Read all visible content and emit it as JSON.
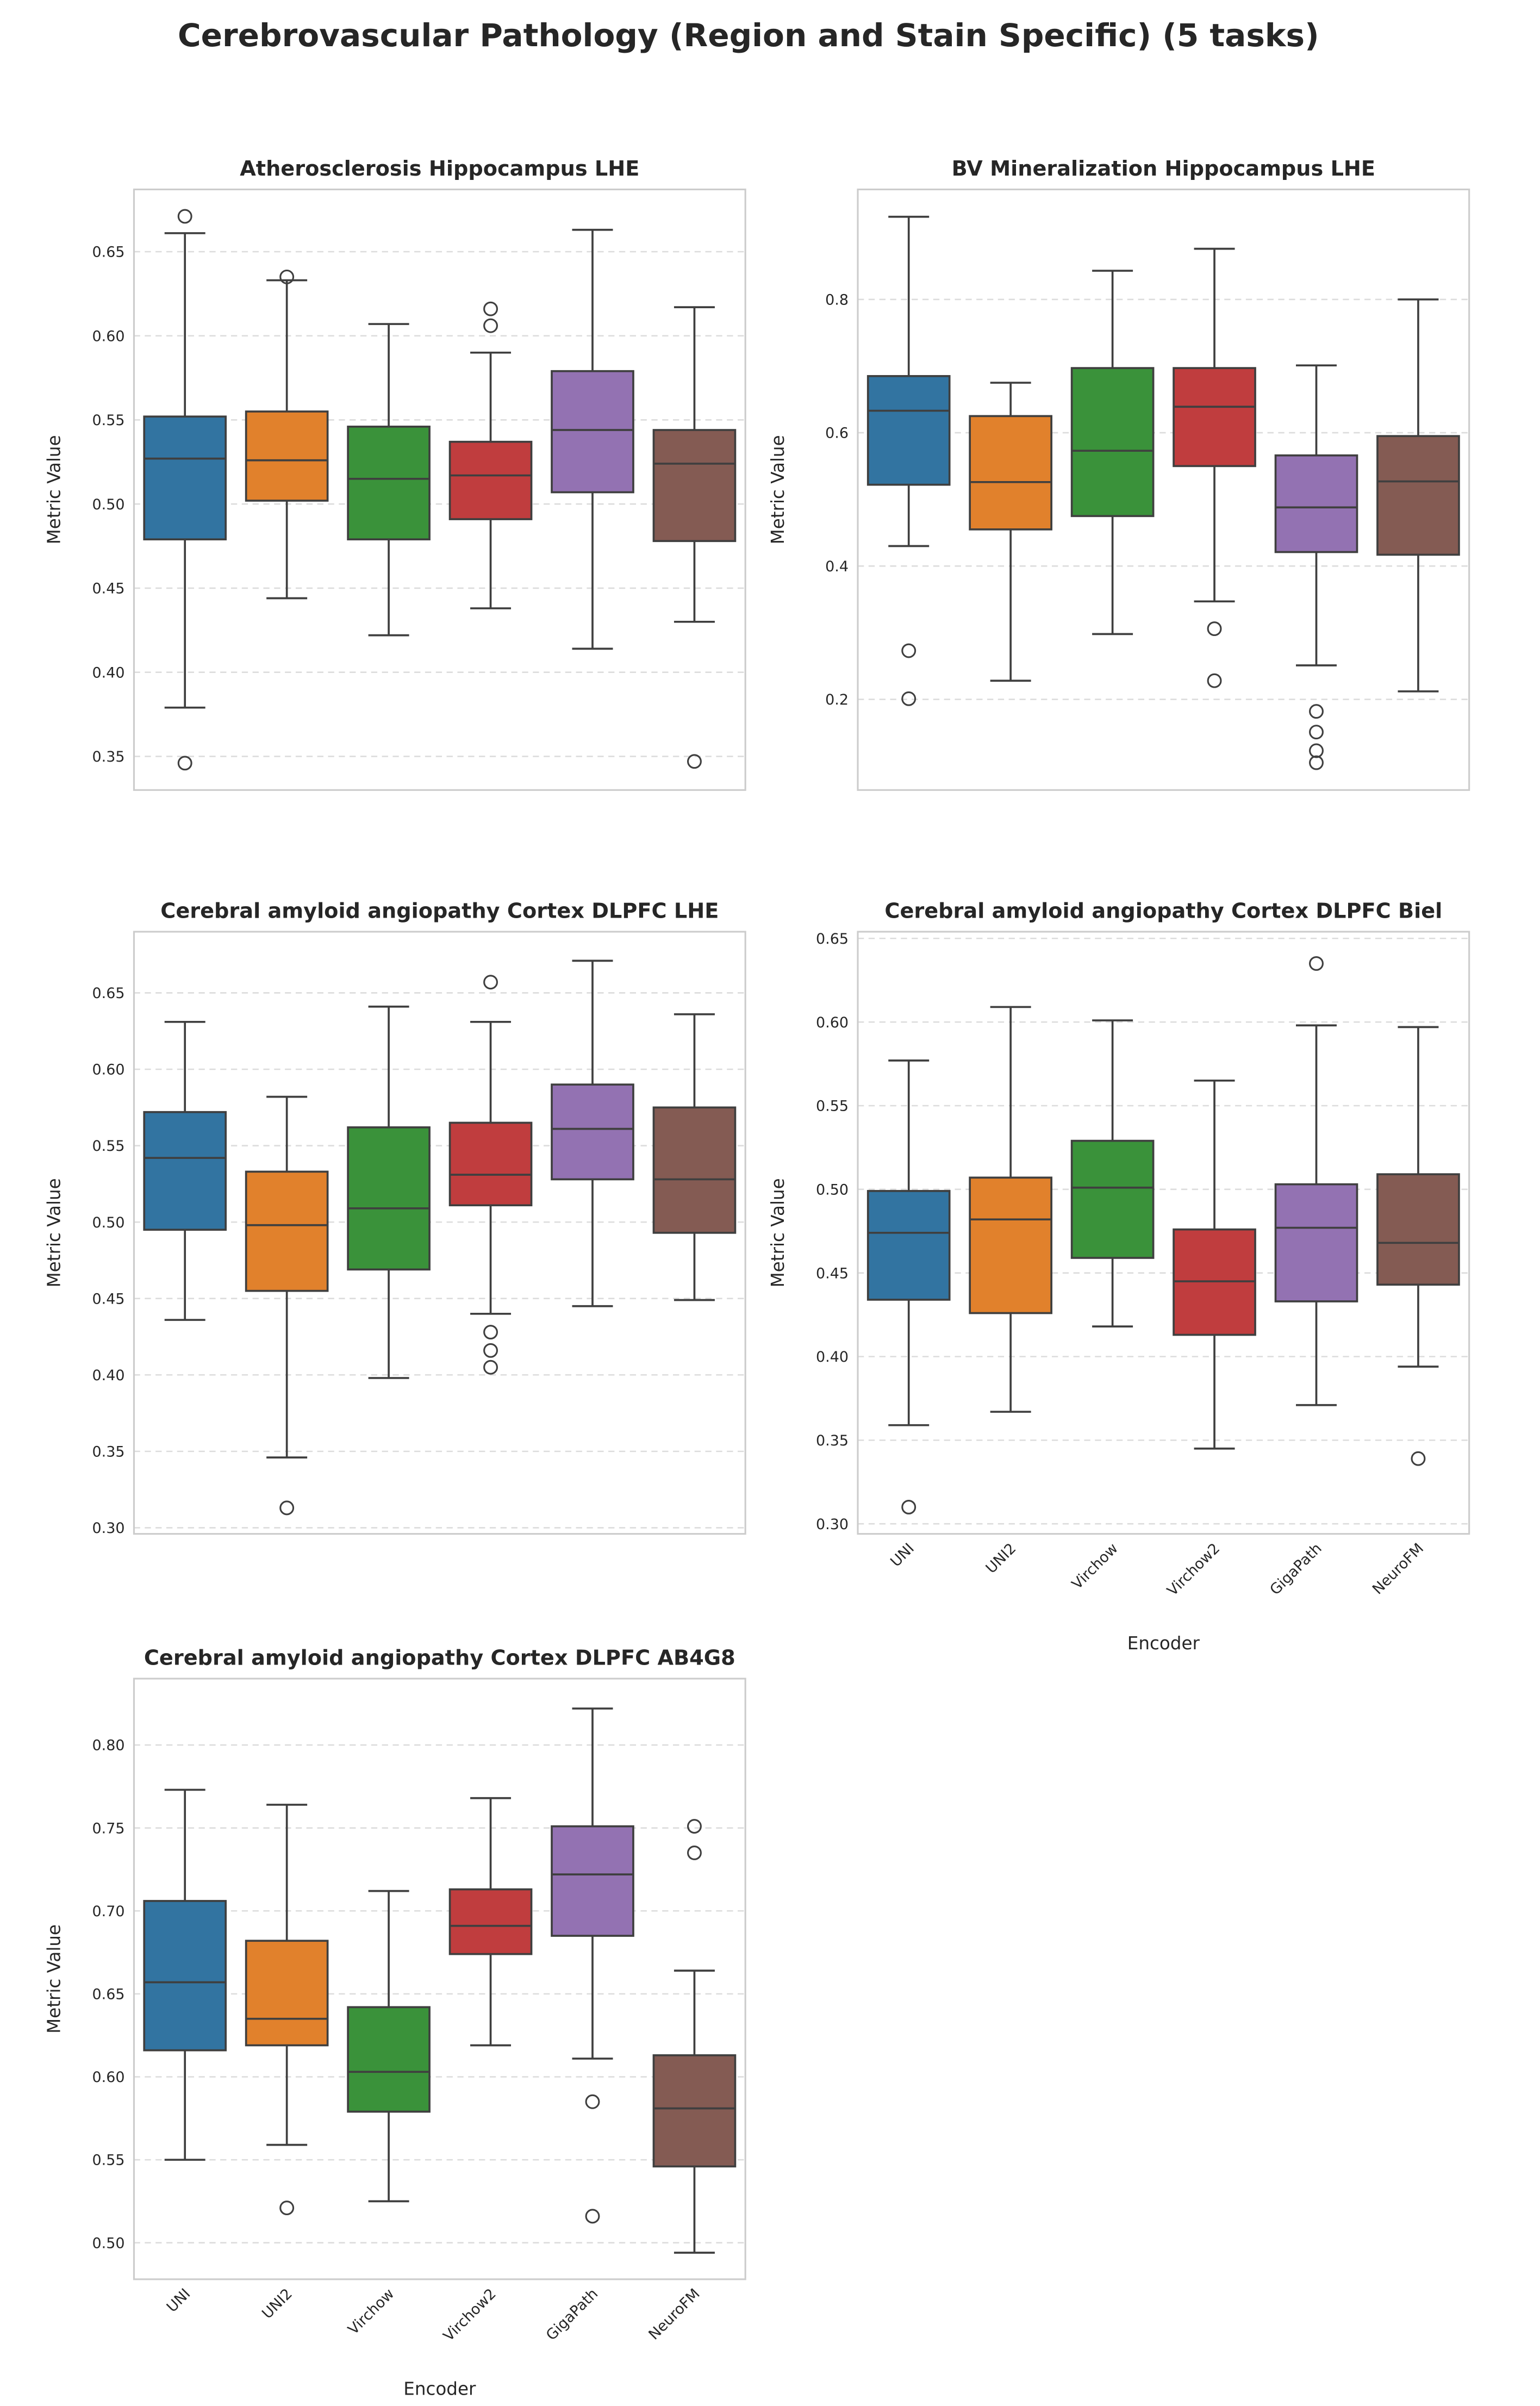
{
  "figure_title": "Cerebrovascular Pathology (Region and Stain Specific) (5 tasks)",
  "palette": {
    "UNI": "#3274a1",
    "UNI2": "#e1812c",
    "Virchow": "#3a923a",
    "Virchow2": "#c03d3e",
    "GigaPath": "#9372b2",
    "NeuroFM": "#845b53"
  },
  "chart_data": [
    {
      "type": "box",
      "title": "Atherosclerosis Hippocampus LHE",
      "xlabel": "",
      "ylabel": "Metric Value",
      "ylim": [
        0.33,
        0.687
      ],
      "yticks": [
        "0.35",
        "0.40",
        "0.45",
        "0.50",
        "0.55",
        "0.60",
        "0.65"
      ],
      "show_xticklabels": false,
      "grid": "y dashed",
      "categories": [
        "UNI",
        "UNI2",
        "Virchow",
        "Virchow2",
        "GigaPath",
        "NeuroFM"
      ],
      "boxes": [
        {
          "whisker_low": 0.379,
          "q1": 0.479,
          "median": 0.527,
          "q3": 0.552,
          "whisker_high": 0.661,
          "outliers": [
            0.671,
            0.346
          ]
        },
        {
          "whisker_low": 0.444,
          "q1": 0.502,
          "median": 0.526,
          "q3": 0.555,
          "whisker_high": 0.633,
          "outliers": [
            0.635
          ]
        },
        {
          "whisker_low": 0.422,
          "q1": 0.479,
          "median": 0.515,
          "q3": 0.546,
          "whisker_high": 0.607,
          "outliers": []
        },
        {
          "whisker_low": 0.438,
          "q1": 0.491,
          "median": 0.517,
          "q3": 0.537,
          "whisker_high": 0.59,
          "outliers": [
            0.616,
            0.606
          ]
        },
        {
          "whisker_low": 0.414,
          "q1": 0.507,
          "median": 0.544,
          "q3": 0.579,
          "whisker_high": 0.663,
          "outliers": []
        },
        {
          "whisker_low": 0.43,
          "q1": 0.478,
          "median": 0.524,
          "q3": 0.544,
          "whisker_high": 0.617,
          "outliers": [
            0.347
          ]
        }
      ]
    },
    {
      "type": "box",
      "title": "BV Mineralization Hippocampus LHE",
      "xlabel": "",
      "ylabel": "Metric Value",
      "ylim": [
        0.064,
        0.965
      ],
      "yticks": [
        "0.2",
        "0.4",
        "0.6",
        "0.8"
      ],
      "show_xticklabels": false,
      "grid": "y dashed",
      "categories": [
        "UNI",
        "UNI2",
        "Virchow",
        "Virchow2",
        "GigaPath",
        "NeuroFM"
      ],
      "boxes": [
        {
          "whisker_low": 0.43,
          "q1": 0.522,
          "median": 0.633,
          "q3": 0.685,
          "whisker_high": 0.924,
          "outliers": [
            0.273,
            0.201
          ]
        },
        {
          "whisker_low": 0.228,
          "q1": 0.455,
          "median": 0.526,
          "q3": 0.625,
          "whisker_high": 0.675,
          "outliers": []
        },
        {
          "whisker_low": 0.298,
          "q1": 0.475,
          "median": 0.573,
          "q3": 0.697,
          "whisker_high": 0.843,
          "outliers": []
        },
        {
          "whisker_low": 0.347,
          "q1": 0.55,
          "median": 0.639,
          "q3": 0.697,
          "whisker_high": 0.876,
          "outliers": [
            0.306,
            0.228
          ]
        },
        {
          "whisker_low": 0.251,
          "q1": 0.421,
          "median": 0.488,
          "q3": 0.566,
          "whisker_high": 0.701,
          "outliers": [
            0.182,
            0.151,
            0.123,
            0.105
          ]
        },
        {
          "whisker_low": 0.212,
          "q1": 0.417,
          "median": 0.527,
          "q3": 0.595,
          "whisker_high": 0.8,
          "outliers": []
        }
      ]
    },
    {
      "type": "box",
      "title": "Cerebral amyloid angiopathy Cortex DLPFC LHE",
      "xlabel": "",
      "ylabel": "Metric Value",
      "ylim": [
        0.296,
        0.69
      ],
      "yticks": [
        "0.30",
        "0.35",
        "0.40",
        "0.45",
        "0.50",
        "0.55",
        "0.60",
        "0.65"
      ],
      "show_xticklabels": false,
      "grid": "y dashed",
      "categories": [
        "UNI",
        "UNI2",
        "Virchow",
        "Virchow2",
        "GigaPath",
        "NeuroFM"
      ],
      "boxes": [
        {
          "whisker_low": 0.436,
          "q1": 0.495,
          "median": 0.542,
          "q3": 0.572,
          "whisker_high": 0.631,
          "outliers": []
        },
        {
          "whisker_low": 0.346,
          "q1": 0.455,
          "median": 0.498,
          "q3": 0.533,
          "whisker_high": 0.582,
          "outliers": [
            0.313
          ]
        },
        {
          "whisker_low": 0.398,
          "q1": 0.469,
          "median": 0.509,
          "q3": 0.562,
          "whisker_high": 0.641,
          "outliers": []
        },
        {
          "whisker_low": 0.44,
          "q1": 0.511,
          "median": 0.531,
          "q3": 0.565,
          "whisker_high": 0.631,
          "outliers": [
            0.657,
            0.428,
            0.416,
            0.405
          ]
        },
        {
          "whisker_low": 0.445,
          "q1": 0.528,
          "median": 0.561,
          "q3": 0.59,
          "whisker_high": 0.671,
          "outliers": []
        },
        {
          "whisker_low": 0.449,
          "q1": 0.493,
          "median": 0.528,
          "q3": 0.575,
          "whisker_high": 0.636,
          "outliers": []
        }
      ]
    },
    {
      "type": "box",
      "title": "Cerebral amyloid angiopathy Cortex DLPFC Biel",
      "xlabel": "Encoder",
      "ylabel": "Metric Value",
      "ylim": [
        0.294,
        0.654
      ],
      "yticks": [
        "0.30",
        "0.35",
        "0.40",
        "0.45",
        "0.50",
        "0.55",
        "0.60",
        "0.65"
      ],
      "show_xticklabels": true,
      "grid": "y dashed",
      "categories": [
        "UNI",
        "UNI2",
        "Virchow",
        "Virchow2",
        "GigaPath",
        "NeuroFM"
      ],
      "boxes": [
        {
          "whisker_low": 0.359,
          "q1": 0.434,
          "median": 0.474,
          "q3": 0.499,
          "whisker_high": 0.577,
          "outliers": [
            0.31
          ]
        },
        {
          "whisker_low": 0.367,
          "q1": 0.426,
          "median": 0.482,
          "q3": 0.507,
          "whisker_high": 0.609,
          "outliers": []
        },
        {
          "whisker_low": 0.418,
          "q1": 0.459,
          "median": 0.501,
          "q3": 0.529,
          "whisker_high": 0.601,
          "outliers": []
        },
        {
          "whisker_low": 0.345,
          "q1": 0.413,
          "median": 0.445,
          "q3": 0.476,
          "whisker_high": 0.565,
          "outliers": []
        },
        {
          "whisker_low": 0.371,
          "q1": 0.433,
          "median": 0.477,
          "q3": 0.503,
          "whisker_high": 0.598,
          "outliers": [
            0.635
          ]
        },
        {
          "whisker_low": 0.394,
          "q1": 0.443,
          "median": 0.468,
          "q3": 0.509,
          "whisker_high": 0.597,
          "outliers": [
            0.339
          ]
        }
      ]
    },
    {
      "type": "box",
      "title": "Cerebral amyloid angiopathy Cortex DLPFC AB4G8",
      "xlabel": "Encoder",
      "ylabel": "Metric Value",
      "ylim": [
        0.478,
        0.84
      ],
      "yticks": [
        "0.50",
        "0.55",
        "0.60",
        "0.65",
        "0.70",
        "0.75",
        "0.80"
      ],
      "show_xticklabels": true,
      "grid": "y dashed",
      "categories": [
        "UNI",
        "UNI2",
        "Virchow",
        "Virchow2",
        "GigaPath",
        "NeuroFM"
      ],
      "boxes": [
        {
          "whisker_low": 0.55,
          "q1": 0.616,
          "median": 0.657,
          "q3": 0.706,
          "whisker_high": 0.773,
          "outliers": []
        },
        {
          "whisker_low": 0.559,
          "q1": 0.619,
          "median": 0.635,
          "q3": 0.682,
          "whisker_high": 0.764,
          "outliers": [
            0.521
          ]
        },
        {
          "whisker_low": 0.525,
          "q1": 0.579,
          "median": 0.603,
          "q3": 0.642,
          "whisker_high": 0.712,
          "outliers": []
        },
        {
          "whisker_low": 0.619,
          "q1": 0.674,
          "median": 0.691,
          "q3": 0.713,
          "whisker_high": 0.768,
          "outliers": []
        },
        {
          "whisker_low": 0.611,
          "q1": 0.685,
          "median": 0.722,
          "q3": 0.751,
          "whisker_high": 0.822,
          "outliers": [
            0.585,
            0.516
          ]
        },
        {
          "whisker_low": 0.494,
          "q1": 0.546,
          "median": 0.581,
          "q3": 0.613,
          "whisker_high": 0.664,
          "outliers": [
            0.751,
            0.735
          ]
        }
      ]
    }
  ]
}
